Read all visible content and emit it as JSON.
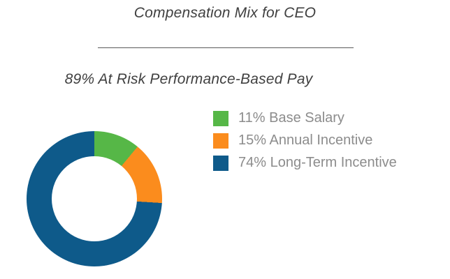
{
  "title": "Compensation Mix for CEO",
  "subtitle": "89% At Risk Performance-Based Pay",
  "chart_data": {
    "type": "pie",
    "variant": "donut",
    "title": "Compensation Mix for CEO",
    "subtitle": "89% At Risk Performance-Based Pay",
    "categories": [
      "Base Salary",
      "Annual Incentive",
      "Long-Term Incentive"
    ],
    "values": [
      11,
      15,
      74
    ],
    "unit": "percent",
    "legend_labels": [
      "11% Base Salary",
      "15% Annual Incentive",
      "74% Long-Term Incentive"
    ],
    "colors": [
      "#56B747",
      "#FB8C1D",
      "#0E5A8A"
    ],
    "start_angle_deg": 0,
    "direction": "clockwise",
    "legend_position": "right",
    "hole_ratio": 0.63
  },
  "style": {
    "title_color": "#404040",
    "legend_text_color": "#8c8c8c",
    "background": "#ffffff"
  }
}
